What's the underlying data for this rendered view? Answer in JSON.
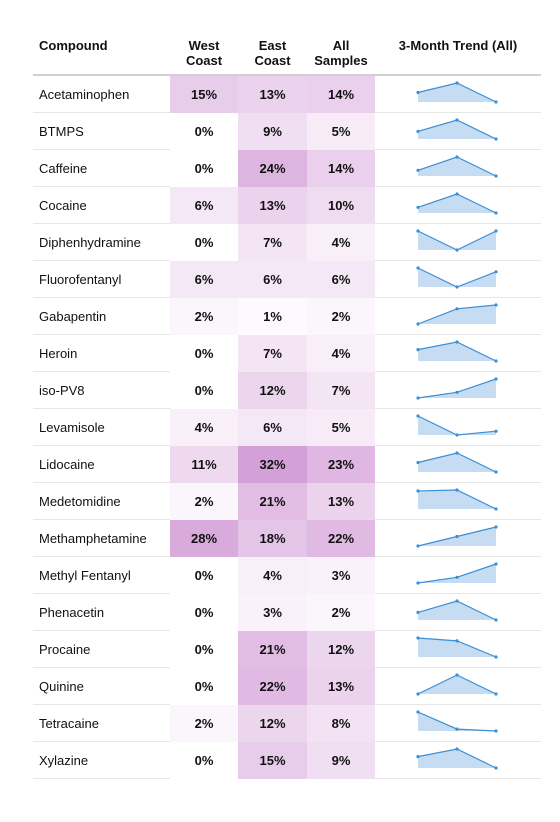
{
  "headers": {
    "compound": "Compound",
    "west_l1": "West",
    "west_l2": "Coast",
    "east_l1": "East",
    "east_l2": "Coast",
    "all_l1": "All",
    "all_l2": "Samples",
    "trend": "3-Month Trend (All)"
  },
  "colors": {
    "heat_max": "#d4a0d8",
    "sparkline_line": "#3a8fd6",
    "sparkline_fill": "#c6dcf2"
  },
  "chart_data": {
    "type": "table",
    "columns": [
      "Compound",
      "West Coast",
      "East Coast",
      "All Samples",
      "3-Month Trend (All)"
    ],
    "rows": [
      {
        "compound": "Acetaminophen",
        "west": 15,
        "east": 13,
        "all": 14,
        "trend": [
          0.5,
          1.0,
          0.0
        ]
      },
      {
        "compound": "BTMPS",
        "west": 0,
        "east": 9,
        "all": 5,
        "trend": [
          0.4,
          1.0,
          0.0
        ]
      },
      {
        "compound": "Caffeine",
        "west": 0,
        "east": 24,
        "all": 14,
        "trend": [
          0.3,
          1.0,
          0.0
        ]
      },
      {
        "compound": "Cocaine",
        "west": 6,
        "east": 13,
        "all": 10,
        "trend": [
          0.3,
          1.0,
          0.0
        ]
      },
      {
        "compound": "Diphenhydramine",
        "west": 0,
        "east": 7,
        "all": 4,
        "trend": [
          1.0,
          0.0,
          1.0
        ]
      },
      {
        "compound": "Fluorofentanyl",
        "west": 6,
        "east": 6,
        "all": 6,
        "trend": [
          1.0,
          0.0,
          0.8
        ]
      },
      {
        "compound": "Gabapentin",
        "west": 2,
        "east": 1,
        "all": 2,
        "trend": [
          0.0,
          0.8,
          1.0
        ]
      },
      {
        "compound": "Heroin",
        "west": 0,
        "east": 7,
        "all": 4,
        "trend": [
          0.6,
          1.0,
          0.0
        ]
      },
      {
        "compound": "iso-PV8",
        "west": 0,
        "east": 12,
        "all": 7,
        "trend": [
          0.0,
          0.3,
          1.0
        ]
      },
      {
        "compound": "Levamisole",
        "west": 4,
        "east": 6,
        "all": 5,
        "trend": [
          1.0,
          0.0,
          0.2
        ]
      },
      {
        "compound": "Lidocaine",
        "west": 11,
        "east": 32,
        "all": 23,
        "trend": [
          0.5,
          1.0,
          0.0
        ]
      },
      {
        "compound": "Medetomidine",
        "west": 2,
        "east": 21,
        "all": 13,
        "trend": [
          0.95,
          1.0,
          0.0
        ]
      },
      {
        "compound": "Methamphetamine",
        "west": 28,
        "east": 18,
        "all": 22,
        "trend": [
          0.0,
          0.5,
          1.0
        ]
      },
      {
        "compound": "Methyl Fentanyl",
        "west": 0,
        "east": 4,
        "all": 3,
        "trend": [
          0.0,
          0.3,
          1.0
        ]
      },
      {
        "compound": "Phenacetin",
        "west": 0,
        "east": 3,
        "all": 2,
        "trend": [
          0.4,
          1.0,
          0.0
        ]
      },
      {
        "compound": "Procaine",
        "west": 0,
        "east": 21,
        "all": 12,
        "trend": [
          1.0,
          0.85,
          0.0
        ]
      },
      {
        "compound": "Quinine",
        "west": 0,
        "east": 22,
        "all": 13,
        "trend": [
          0.0,
          1.0,
          0.0
        ]
      },
      {
        "compound": "Tetracaine",
        "west": 2,
        "east": 12,
        "all": 8,
        "trend": [
          1.0,
          0.1,
          0.0
        ]
      },
      {
        "compound": "Xylazine",
        "west": 0,
        "east": 15,
        "all": 9,
        "trend": [
          0.6,
          1.0,
          0.0
        ]
      }
    ]
  }
}
